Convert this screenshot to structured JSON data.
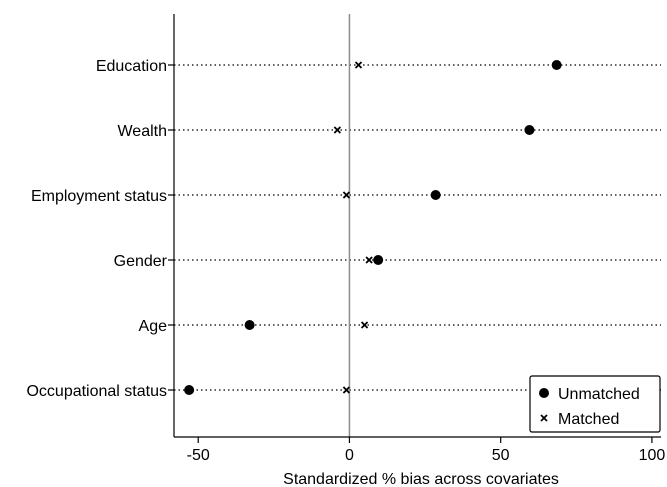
{
  "chart_data": {
    "type": "scatter",
    "categories": [
      "Education",
      "Wealth",
      "Employment status",
      "Gender",
      "Age",
      "Occupational status"
    ],
    "series": [
      {
        "name": "Unmatched",
        "marker": "dot",
        "values": [
          68.5,
          59.5,
          28.5,
          9.5,
          -33.0,
          -53.0
        ]
      },
      {
        "name": "Matched",
        "marker": "x",
        "values": [
          3.0,
          -4.0,
          -1.0,
          6.5,
          5.0,
          -1.0
        ]
      }
    ],
    "title": "",
    "xlabel": "Standardized % bias across covariates",
    "ylabel": "",
    "xlim": [
      -58,
      103
    ],
    "xticks": [
      -50,
      0,
      50,
      100
    ],
    "grid": "dotted horizontal",
    "reference_line": 0,
    "legend": "bottom-right"
  }
}
